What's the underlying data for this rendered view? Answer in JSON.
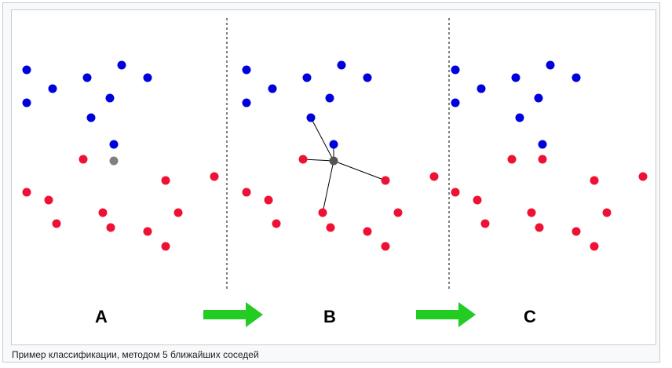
{
  "diagram": {
    "panels": [
      {
        "label": "A"
      },
      {
        "label": "B"
      },
      {
        "label": "C"
      }
    ],
    "colors": {
      "class_blue": "#0000dd",
      "class_red": "#ee1133",
      "query_point": "#808080",
      "arrow": "#22cc22",
      "divider": "#000000",
      "neighbor_line": "#000000"
    },
    "k_neighbors": 5,
    "query_initial_class": "unknown",
    "query_final_class": "red"
  },
  "caption": {
    "text": "Пример классификации, методом 5 ближайших соседей"
  }
}
